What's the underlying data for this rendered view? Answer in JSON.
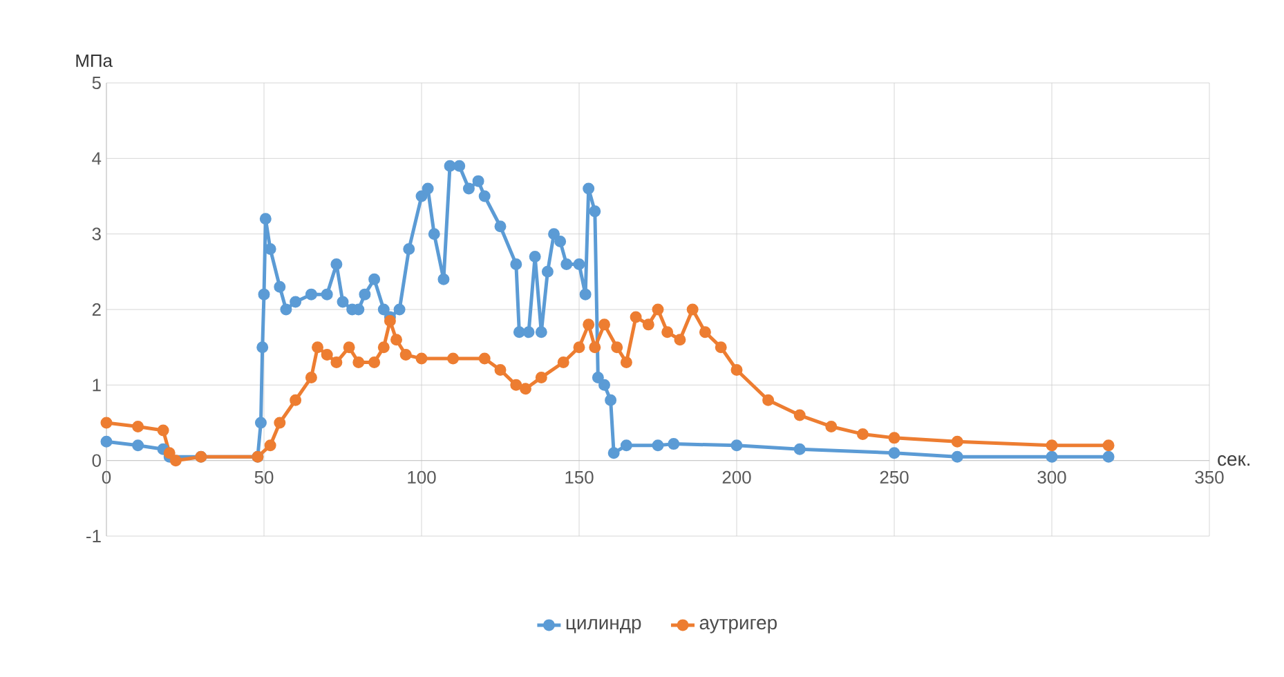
{
  "chart_data": {
    "type": "line",
    "xlabel": "сек.",
    "ylabel": "МПа",
    "xlim": [
      0,
      350
    ],
    "ylim": [
      -1,
      5
    ],
    "xticks": [
      0,
      50,
      100,
      150,
      200,
      250,
      300,
      350
    ],
    "yticks": [
      -1,
      0,
      1,
      2,
      3,
      4,
      5
    ],
    "grid": true,
    "legend": "bottom",
    "marker": "circle",
    "line_style": "solid",
    "series": [
      {
        "name": "цилиндр",
        "color": "#5b9bd5",
        "x": [
          0,
          10,
          18,
          20,
          30,
          48,
          49,
          49.5,
          50,
          50.5,
          52,
          55,
          57,
          60,
          65,
          70,
          73,
          75,
          78,
          80,
          82,
          85,
          88,
          90,
          93,
          96,
          100,
          102,
          104,
          107,
          109,
          112,
          115,
          118,
          120,
          125,
          130,
          131,
          134,
          136,
          138,
          140,
          142,
          144,
          146,
          150,
          152,
          153,
          155,
          156,
          158,
          160,
          161,
          165,
          175,
          180,
          200,
          220,
          250,
          270,
          300,
          318
        ],
        "values": [
          0.25,
          0.2,
          0.15,
          0.05,
          0.05,
          0.05,
          0.5,
          1.5,
          2.2,
          3.2,
          2.8,
          2.3,
          2.0,
          2.1,
          2.2,
          2.2,
          2.6,
          2.1,
          2.0,
          2.0,
          2.2,
          2.4,
          2.0,
          1.9,
          2.0,
          2.8,
          3.5,
          3.6,
          3.0,
          2.4,
          3.9,
          3.9,
          3.6,
          3.7,
          3.5,
          3.1,
          2.6,
          1.7,
          1.7,
          2.7,
          1.7,
          2.5,
          3.0,
          2.9,
          2.6,
          2.6,
          2.2,
          3.6,
          3.3,
          1.1,
          1.0,
          0.8,
          0.1,
          0.2,
          0.2,
          0.22,
          0.2,
          0.15,
          0.1,
          0.05,
          0.05,
          0.05
        ]
      },
      {
        "name": "аутригер",
        "color": "#ed7d31",
        "x": [
          0,
          10,
          18,
          20,
          22,
          30,
          48,
          52,
          55,
          60,
          65,
          67,
          70,
          73,
          77,
          80,
          85,
          88,
          90,
          92,
          95,
          100,
          110,
          120,
          125,
          130,
          133,
          138,
          145,
          150,
          153,
          155,
          158,
          162,
          165,
          168,
          172,
          175,
          178,
          182,
          186,
          190,
          195,
          200,
          210,
          220,
          230,
          240,
          250,
          270,
          300,
          318
        ],
        "values": [
          0.5,
          0.45,
          0.4,
          0.1,
          0.0,
          0.05,
          0.05,
          0.2,
          0.5,
          0.8,
          1.1,
          1.5,
          1.4,
          1.3,
          1.5,
          1.3,
          1.3,
          1.5,
          1.85,
          1.6,
          1.4,
          1.35,
          1.35,
          1.35,
          1.2,
          1.0,
          0.95,
          1.1,
          1.3,
          1.5,
          1.8,
          1.5,
          1.8,
          1.5,
          1.3,
          1.9,
          1.8,
          2.0,
          1.7,
          1.6,
          2.0,
          1.7,
          1.5,
          1.2,
          0.8,
          0.6,
          0.45,
          0.35,
          0.3,
          0.25,
          0.2,
          0.2
        ]
      }
    ]
  }
}
